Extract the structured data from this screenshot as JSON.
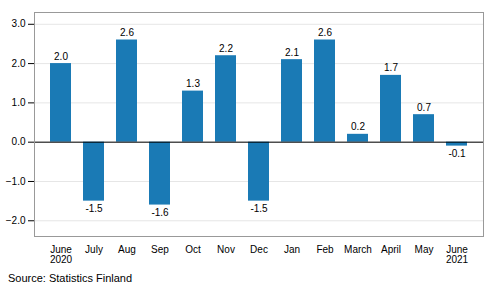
{
  "chart_data": {
    "type": "bar",
    "categories": [
      "June\n2020",
      "July",
      "Aug",
      "Sep",
      "Oct",
      "Nov",
      "Dec",
      "Jan",
      "Feb",
      "March",
      "April",
      "May",
      "June\n2021"
    ],
    "values": [
      2.0,
      -1.5,
      2.6,
      -1.6,
      1.3,
      2.2,
      -1.5,
      2.1,
      2.6,
      0.2,
      1.7,
      0.7,
      -0.1
    ],
    "value_labels": [
      "2.0",
      "-1.5",
      "2.6",
      "-1.6",
      "1.3",
      "2.2",
      "-1.5",
      "2.1",
      "2.6",
      "0.2",
      "1.7",
      "0.7",
      "-0.1"
    ],
    "data_labels": true,
    "color": "#1a7ab5",
    "ylim": [
      -2.4,
      3.3
    ],
    "yticks": [
      -2,
      -1,
      0,
      1,
      2,
      3
    ],
    "grid": true,
    "annotations": [
      "Source: Statistics Finland"
    ]
  }
}
